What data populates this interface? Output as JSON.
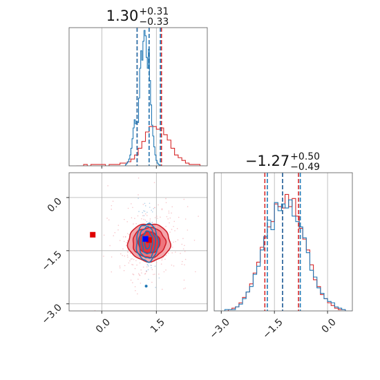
{
  "chart_data": {
    "type": "corner",
    "parameters": [
      {
        "title": {
          "value": "1.30",
          "plus": "+0.31",
          "minus": "−0.33"
        },
        "range": [
          -0.9,
          2.9
        ],
        "ticks": [
          {
            "value": 0.0,
            "label": "0.0"
          },
          {
            "value": 1.5,
            "label": "1.5"
          }
        ],
        "quantiles_blue": [
          0.97,
          1.3,
          1.61
        ],
        "quantiles_red": [
          0.97,
          1.3,
          1.64
        ]
      },
      {
        "title": {
          "value": "−1.27",
          "plus": "+0.50",
          "minus": "−0.49"
        },
        "range": [
          -3.2,
          0.7
        ],
        "ticks": [
          {
            "value": -3.0,
            "label": "−3.0"
          },
          {
            "value": -1.5,
            "label": "−1.5"
          },
          {
            "value": 0.0,
            "label": "0.0"
          }
        ],
        "quantiles_blue": [
          -1.7,
          -1.27,
          -0.77
        ],
        "quantiles_red": [
          -1.77,
          -1.27,
          -0.82
        ]
      }
    ],
    "series": [
      {
        "color": "#1f77b4"
      },
      {
        "color": "#d62728"
      }
    ],
    "markers": [
      {
        "x": -0.25,
        "y": -1.05,
        "color": "#e00000"
      },
      {
        "x": 1.3,
        "y": -1.2,
        "color": "#e00000"
      },
      {
        "x": 1.2,
        "y": -1.17,
        "color": "#0000ff"
      }
    ],
    "hist_x_blue": {
      "bin_start": 0.62,
      "bin_width": 0.03,
      "values": [
        0,
        1,
        2,
        3,
        5,
        8,
        13,
        20,
        28,
        34,
        31,
        33,
        32,
        50,
        72,
        85,
        78,
        92,
        100,
        96,
        80,
        72,
        86,
        63,
        45,
        30,
        22,
        14,
        8,
        4,
        2,
        1,
        0
      ]
    },
    "hist_x_red": {
      "bin_start": -0.7,
      "bin_width": 0.1,
      "values": [
        0,
        0,
        1,
        0,
        1,
        1,
        1,
        1,
        0,
        1,
        1,
        1,
        2,
        2,
        3,
        5,
        8,
        13,
        18,
        25,
        29,
        29,
        27,
        28,
        23,
        19,
        13,
        8,
        6,
        4,
        2,
        1,
        1,
        1,
        0
      ]
    },
    "hist_y_blue": {
      "bin_start": -3.2,
      "bin_width": 0.1,
      "values": [
        0,
        0,
        0,
        1,
        1,
        1,
        3,
        5,
        9,
        14,
        18,
        27,
        33,
        45,
        55,
        67,
        60,
        80,
        74,
        79,
        76,
        82,
        70,
        66,
        62,
        54,
        43,
        30,
        25,
        17,
        13,
        9,
        7,
        6,
        3,
        2,
        1,
        0,
        0
      ]
    },
    "hist_y_red": {
      "bin_start": -3.2,
      "bin_width": 0.1,
      "values": [
        0,
        0,
        0,
        0,
        1,
        2,
        3,
        6,
        10,
        14,
        20,
        28,
        36,
        47,
        54,
        62,
        66,
        79,
        77,
        76,
        86,
        77,
        83,
        70,
        61,
        53,
        45,
        34,
        23,
        18,
        12,
        9,
        6,
        4,
        2,
        1,
        1,
        0,
        0
      ]
    }
  }
}
